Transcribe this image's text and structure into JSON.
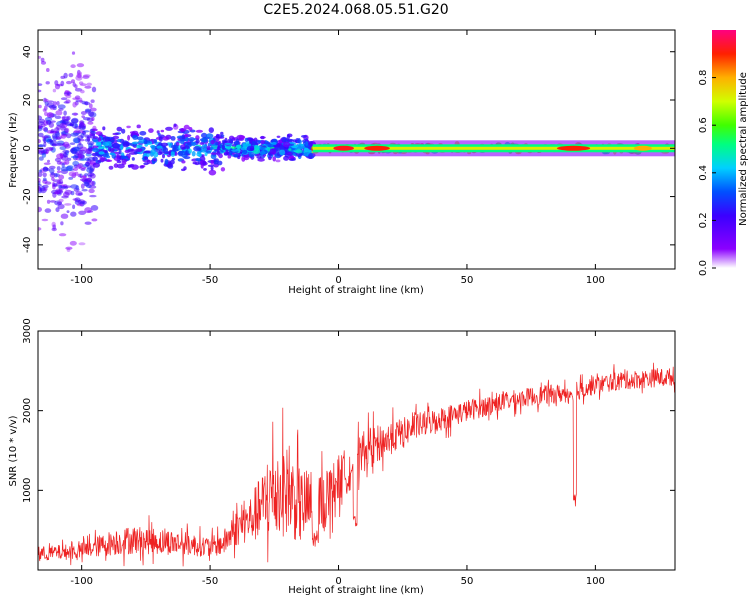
{
  "title": "C2E5.2024.068.05.51.G20",
  "colors": {
    "axis": "#000000",
    "snr_line": "#ee2222",
    "colormap": [
      "#ffffff",
      "#8b00ff",
      "#3b00ff",
      "#0050ff",
      "#00d0ff",
      "#00ff80",
      "#40ff00",
      "#d0ff00",
      "#ffb000",
      "#ff2000",
      "#ff0080"
    ]
  },
  "chart_data": [
    {
      "type": "heatmap",
      "name": "spectrogram",
      "xlabel": "Height of straight line (km)",
      "ylabel": "Frequency (Hz)",
      "xlim": [
        -117,
        131
      ],
      "ylim": [
        -50,
        49
      ],
      "xticks": [
        -100,
        -50,
        0,
        50,
        100
      ],
      "xtick_labels": [
        "-100",
        "-50",
        "0",
        "50",
        "100"
      ],
      "yticks": [
        -40,
        -20,
        0,
        20,
        40
      ],
      "ytick_labels": [
        "-40",
        "-20",
        "0",
        "20",
        "40"
      ],
      "description_bands": [
        {
          "x_range": [
            -117,
            -95
          ],
          "freq_spread": 49,
          "level": 0.25
        },
        {
          "x_range": [
            -95,
            -45
          ],
          "freq_spread": 12,
          "level": 0.35
        },
        {
          "x_range": [
            -45,
            -10
          ],
          "freq_spread": 6,
          "level": 0.4
        },
        {
          "x_range": [
            -10,
            131
          ],
          "freq_spread": 2.5,
          "level": 0.55
        }
      ],
      "colorbar": {
        "label": "Normalized spectral amplitude",
        "range": [
          0.0,
          1.0
        ],
        "ticks": [
          0.0,
          0.2,
          0.4,
          0.6,
          0.8
        ],
        "tick_labels": [
          "0.0",
          "0.2",
          "0.4",
          "0.6",
          "0.8"
        ]
      }
    },
    {
      "type": "line",
      "name": "snr",
      "xlabel": "Height of straight line (km)",
      "ylabel": "SNR (10 * v/v)",
      "xlim": [
        -117,
        131
      ],
      "ylim": [
        0,
        3000
      ],
      "xticks": [
        -100,
        -50,
        0,
        50,
        100
      ],
      "xtick_labels": [
        "-100",
        "-50",
        "0",
        "50",
        "100"
      ],
      "yticks": [
        1000,
        2000,
        3000
      ],
      "ytick_labels": [
        "1000",
        "2000",
        "3000"
      ],
      "series": [
        {
          "name": "SNR",
          "x": [
            -117,
            -100,
            -90,
            -80,
            -70,
            -60,
            -50,
            -45,
            -40,
            -35,
            -30,
            -25,
            -20,
            -15,
            -10,
            -5,
            0,
            5,
            10,
            20,
            30,
            40,
            50,
            60,
            70,
            80,
            90,
            100,
            110,
            120,
            131
          ],
          "mean": [
            200,
            240,
            330,
            380,
            360,
            330,
            290,
            330,
            520,
            620,
            780,
            1000,
            1000,
            800,
            820,
            900,
            1150,
            1300,
            1500,
            1650,
            1800,
            1900,
            2000,
            2080,
            2150,
            2200,
            2220,
            2320,
            2380,
            2400,
            2430
          ],
          "spread": [
            130,
            150,
            220,
            260,
            240,
            220,
            180,
            220,
            320,
            400,
            600,
            900,
            800,
            700,
            650,
            500,
            420,
            420,
            380,
            300,
            240,
            220,
            200,
            180,
            170,
            170,
            170,
            170,
            170,
            170,
            160
          ]
        }
      ]
    }
  ]
}
